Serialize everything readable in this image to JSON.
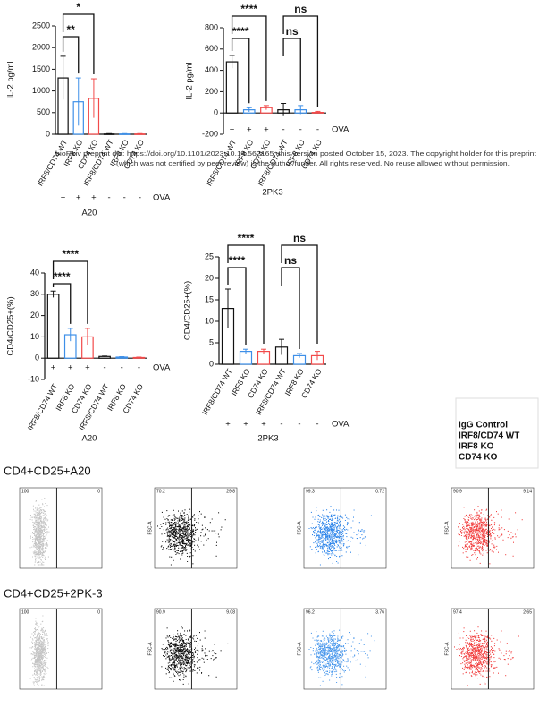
{
  "chart_data": [
    {
      "type": "bar",
      "y_label": "IL-2 pg/ml",
      "x_label": "A20",
      "categories": [
        "IRF8/CD74 WT",
        "IRF8 KO",
        "CD74 KO",
        "IRF8/CD74 WT",
        "IRF8 KO",
        "CD74 KO"
      ],
      "colors": [
        "#111111",
        "#3d8fe8",
        "#f24a4a",
        "#111111",
        "#3d8fe8",
        "#f24a4a"
      ],
      "values": [
        1300,
        750,
        830,
        5,
        5,
        5
      ],
      "errors": [
        500,
        550,
        450,
        10,
        10,
        10
      ],
      "ylim": [
        0,
        2500
      ],
      "yticks": [
        0,
        500,
        1000,
        1500,
        2000,
        2500
      ],
      "treatment": {
        "signs": [
          "+",
          "+",
          "+",
          "-",
          "-",
          "-"
        ],
        "label": "OVA"
      },
      "comparisons": [
        {
          "from": 0,
          "to": 1,
          "label": "**"
        },
        {
          "from": 0,
          "to": 2,
          "label": "*"
        }
      ]
    },
    {
      "type": "bar",
      "y_label": "IL-2 pg/ml",
      "x_label": "2PK3",
      "categories": [
        "IRF8/CD74 WT",
        "IRF8 KO",
        "CD74 KO",
        "IRF8/CD74 WT",
        "IRF8 KO",
        "CD74 KO"
      ],
      "colors": [
        "#111111",
        "#3d8fe8",
        "#f24a4a",
        "#111111",
        "#3d8fe8",
        "#f24a4a"
      ],
      "values": [
        480,
        30,
        50,
        30,
        30,
        5
      ],
      "errors": [
        60,
        20,
        20,
        60,
        40,
        10
      ],
      "ylim": [
        -200,
        800
      ],
      "yticks": [
        -200,
        0,
        200,
        400,
        600,
        800
      ],
      "treatment": {
        "signs": [
          "+",
          "+",
          "+",
          "-",
          "-",
          "-"
        ],
        "label": "OVA"
      },
      "comparisons": [
        {
          "from": 0,
          "to": 1,
          "label": "****"
        },
        {
          "from": 0,
          "to": 2,
          "label": "****"
        },
        {
          "from": 3,
          "to": 4,
          "label": "ns"
        },
        {
          "from": 3,
          "to": 5,
          "label": "ns"
        }
      ]
    },
    {
      "type": "bar",
      "y_label": "CD4/CD25+(%)",
      "x_label": "A20",
      "categories": [
        "IRF8/CD74 WT",
        "IRF8 KO",
        "CD74 KO",
        "IRF8/CD74 WT",
        "IRF8 KO",
        "CD74 KO"
      ],
      "colors": [
        "#111111",
        "#3d8fe8",
        "#f24a4a",
        "#111111",
        "#3d8fe8",
        "#f24a4a"
      ],
      "values": [
        30,
        11,
        10,
        0.8,
        0.5,
        0.3
      ],
      "errors": [
        1.5,
        3,
        4,
        0.2,
        0.2,
        0.2
      ],
      "ylim": [
        -10,
        40
      ],
      "yticks": [
        -10,
        0,
        10,
        20,
        30,
        40
      ],
      "treatment": {
        "signs": [
          "+",
          "+",
          "+",
          "-",
          "-",
          "-"
        ],
        "label": "OVA"
      },
      "comparisons": [
        {
          "from": 0,
          "to": 1,
          "label": "****"
        },
        {
          "from": 0,
          "to": 2,
          "label": "****"
        }
      ]
    },
    {
      "type": "bar",
      "y_label": "CD4/CD25+(%)",
      "x_label": "2PK3",
      "categories": [
        "IRF8/CD74 WT",
        "IRF8 KO",
        "CD74 KO",
        "IRF8/CD74 WT",
        "IRF8 KO",
        "CD74 KO"
      ],
      "colors": [
        "#111111",
        "#3d8fe8",
        "#f24a4a",
        "#111111",
        "#3d8fe8",
        "#f24a4a"
      ],
      "values": [
        13,
        3,
        3,
        4,
        2,
        2
      ],
      "errors": [
        4.5,
        0.5,
        0.5,
        1.8,
        0.5,
        1
      ],
      "ylim": [
        0,
        25
      ],
      "yticks": [
        0,
        5,
        10,
        15,
        20,
        25
      ],
      "treatment": {
        "signs": [
          "+",
          "+",
          "+",
          "-",
          "-",
          "-"
        ],
        "label": "OVA"
      },
      "comparisons": [
        {
          "from": 0,
          "to": 1,
          "label": "****"
        },
        {
          "from": 0,
          "to": 2,
          "label": "****"
        },
        {
          "from": 3,
          "to": 4,
          "label": "ns"
        },
        {
          "from": 3,
          "to": 5,
          "label": "ns"
        }
      ]
    }
  ],
  "notice": [
    "bioRxiv preprint doi: https://doi.org/10.1101/2023.10.14.562165; this version posted October 15, 2023. The copyright holder for this preprint",
    "(which was not certified by peer review) is the author/funder. All rights reserved. No reuse allowed without permission."
  ],
  "legend": [
    {
      "name": "IgG Control",
      "color": "#b8b8b8"
    },
    {
      "name": "IRF8/CD74 WT",
      "color": "#111111"
    },
    {
      "name": "IRF8 KO",
      "color": "#3d8fe8"
    },
    {
      "name": "CD74 KO",
      "color": "#f24a4a"
    }
  ],
  "flow": {
    "y_label": "FSC-A",
    "rows": [
      {
        "title": "CD4+CD25+A20",
        "panels": [
          {
            "color": "#c4c4c4",
            "left": "100",
            "right": "0"
          },
          {
            "color": "#111111",
            "left": "70.2",
            "right": "29.8"
          },
          {
            "color": "#2f86ea",
            "left": "99.3",
            "right": "0.72"
          },
          {
            "color": "#f24040",
            "left": "90.9",
            "right": "9.14"
          }
        ]
      },
      {
        "title": "CD4+CD25+2PK-3",
        "panels": [
          {
            "color": "#c4c4c4",
            "left": "100",
            "right": "0"
          },
          {
            "color": "#111111",
            "left": "90.9",
            "right": "9.08"
          },
          {
            "color": "#4a98ec",
            "left": "96.2",
            "right": "3.76"
          },
          {
            "color": "#f24040",
            "left": "97.4",
            "right": "2.65"
          }
        ]
      }
    ]
  }
}
